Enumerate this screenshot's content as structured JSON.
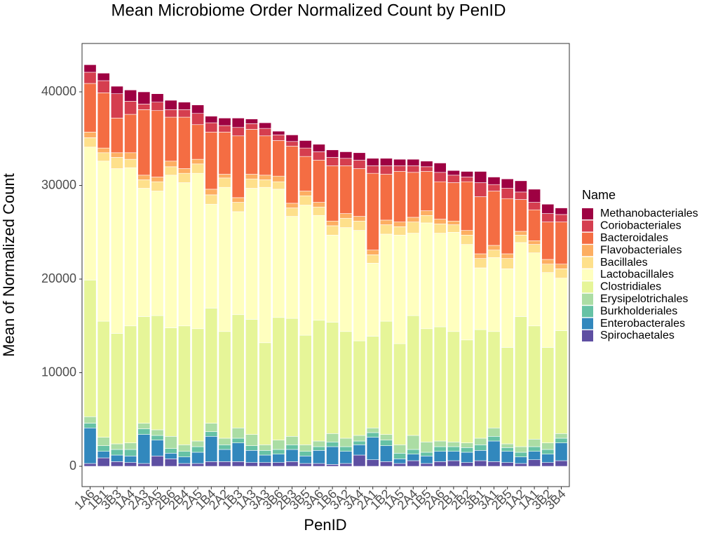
{
  "chart_data": {
    "type": "stacked-bar",
    "title": "Mean Microbiome Order Normalized Count by PenID",
    "x_label": "PenID",
    "y_label": "Mean of Normalized Count",
    "legend_title": "Name",
    "legend_position": "right",
    "grid": false,
    "ylim": [
      -2170,
      45170
    ],
    "yticks": [
      0,
      10000,
      20000,
      30000,
      40000
    ],
    "categories": [
      "1A6",
      "1B1",
      "3B3",
      "1A4",
      "2A3",
      "3A5",
      "2B6",
      "2B4",
      "2A5",
      "1B4",
      "2A2",
      "1B3",
      "1A3",
      "3A3",
      "3B6",
      "2B3",
      "3B5",
      "3A6",
      "1B6",
      "3A2",
      "3A4",
      "2A1",
      "1B2",
      "1A5",
      "2A4",
      "1B5",
      "2A6",
      "2B1",
      "2B2",
      "3B1",
      "3A1",
      "2B5",
      "1A2",
      "1A1",
      "3B2",
      "3B4"
    ],
    "series": [
      {
        "name": "Methanobacteriales",
        "color": "#9E0142",
        "values": [
          800,
          800,
          800,
          1200,
          1300,
          900,
          1000,
          800,
          900,
          700,
          800,
          1000,
          500,
          600,
          400,
          700,
          800,
          800,
          800,
          700,
          800,
          800,
          800,
          700,
          700,
          600,
          1000,
          500,
          600,
          1200,
          800,
          1000,
          1200,
          1400,
          1000,
          700
        ]
      },
      {
        "name": "Coriobacteriales",
        "color": "#D53E4F",
        "values": [
          1200,
          1300,
          2600,
          1400,
          600,
          900,
          800,
          800,
          1200,
          1000,
          700,
          900,
          600,
          800,
          600,
          500,
          900,
          900,
          900,
          800,
          900,
          800,
          900,
          600,
          700,
          500,
          1000,
          800,
          500,
          1500,
          700,
          1100,
          800,
          800,
          900,
          800
        ]
      },
      {
        "name": "Bacteroidales",
        "color": "#F46D43",
        "values": [
          5200,
          5900,
          3700,
          4100,
          7000,
          7100,
          4700,
          5500,
          3700,
          6100,
          4500,
          6600,
          4800,
          4200,
          3800,
          6100,
          3700,
          4500,
          5900,
          5100,
          5100,
          8200,
          4900,
          5400,
          4800,
          4200,
          4000,
          4100,
          5200,
          6100,
          5800,
          5900,
          3400,
          3300,
          4000,
          4500
        ]
      },
      {
        "name": "Flavobacteriales",
        "color": "#FDAE61",
        "values": [
          600,
          500,
          500,
          700,
          500,
          500,
          600,
          500,
          500,
          600,
          400,
          500,
          500,
          500,
          600,
          500,
          500,
          500,
          500,
          500,
          500,
          500,
          500,
          500,
          500,
          500,
          500,
          400,
          500,
          500,
          500,
          500,
          400,
          400,
          500,
          500
        ]
      },
      {
        "name": "Bacillales",
        "color": "#FEE08B",
        "values": [
          1000,
          900,
          1200,
          900,
          900,
          1000,
          900,
          1000,
          1000,
          1000,
          1000,
          1000,
          1000,
          800,
          800,
          900,
          1000,
          900,
          1000,
          1000,
          1000,
          900,
          1000,
          900,
          1200,
          800,
          1000,
          800,
          1000,
          1000,
          800,
          1100,
          800,
          900,
          900,
          1000
        ]
      },
      {
        "name": "Lactobacillales",
        "color": "#FFFFBF",
        "values": [
          14200,
          17100,
          17600,
          16900,
          13700,
          13300,
          16300,
          15300,
          16600,
          11100,
          15400,
          11000,
          14000,
          16600,
          13700,
          10900,
          13900,
          11200,
          9300,
          11100,
          11800,
          7800,
          9300,
          11600,
          8800,
          11300,
          10000,
          10600,
          10200,
          6600,
          7900,
          8400,
          7900,
          7800,
          8000,
          5600
        ]
      },
      {
        "name": "Clostridiales",
        "color": "#E6F598",
        "values": [
          14600,
          12400,
          11800,
          12500,
          11400,
          12200,
          11600,
          12700,
          12000,
          12300,
          11400,
          12100,
          12300,
          10900,
          13100,
          12600,
          11700,
          12900,
          11900,
          11400,
          10100,
          9800,
          12100,
          10800,
          12800,
          12100,
          12200,
          11800,
          11000,
          11600,
          10300,
          10300,
          13900,
          12100,
          10200,
          11000
        ]
      },
      {
        "name": "Erysipelotrichales",
        "color": "#ABDDA4",
        "values": [
          700,
          900,
          600,
          700,
          600,
          600,
          1300,
          700,
          600,
          900,
          700,
          1100,
          1200,
          600,
          1000,
          900,
          700,
          600,
          900,
          900,
          600,
          500,
          600,
          900,
          1500,
          1100,
          600,
          500,
          500,
          700,
          900,
          400,
          600,
          800,
          700,
          500
        ]
      },
      {
        "name": "Burkholderiales",
        "color": "#66C2A5",
        "values": [
          500,
          600,
          600,
          700,
          600,
          500,
          500,
          600,
          600,
          500,
          500,
          500,
          500,
          500,
          500,
          500,
          500,
          400,
          500,
          500,
          400,
          500,
          600,
          600,
          500,
          400,
          500,
          500,
          500,
          600,
          500,
          400,
          500,
          500,
          500,
          500
        ]
      },
      {
        "name": "Enterobacterales",
        "color": "#3288BD",
        "values": [
          3800,
          700,
          700,
          700,
          3100,
          1700,
          600,
          700,
          1200,
          2700,
          1300,
          2000,
          1300,
          800,
          900,
          1300,
          800,
          1400,
          1900,
          1300,
          1100,
          2400,
          1700,
          500,
          700,
          800,
          1100,
          1000,
          1100,
          1100,
          2200,
          1200,
          700,
          900,
          900,
          1900
        ]
      },
      {
        "name": "Spirochaetales",
        "color": "#5E4FA2",
        "values": [
          300,
          900,
          500,
          400,
          300,
          1100,
          800,
          300,
          300,
          500,
          500,
          500,
          400,
          400,
          400,
          500,
          300,
          300,
          200,
          300,
          1200,
          700,
          500,
          300,
          600,
          300,
          500,
          600,
          400,
          600,
          500,
          400,
          300,
          700,
          400,
          600
        ]
      }
    ]
  }
}
